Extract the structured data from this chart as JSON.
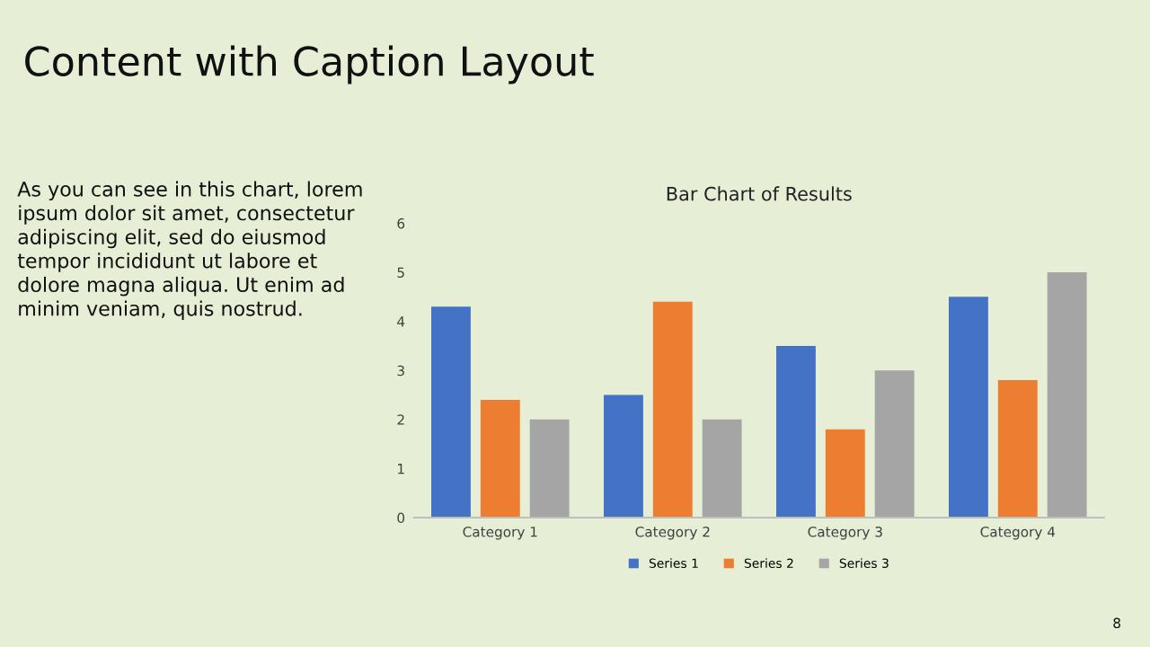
{
  "chart_data": {
    "type": "bar",
    "title": "Bar Chart of Results",
    "categories": [
      "Category 1",
      "Category 2",
      "Category 3",
      "Category 4"
    ],
    "series": [
      {
        "name": "Series 1",
        "color": "#4472c4",
        "values": [
          4.3,
          2.5,
          3.5,
          4.5
        ]
      },
      {
        "name": "Series 2",
        "color": "#ed7d31",
        "values": [
          2.4,
          4.4,
          1.8,
          2.8
        ]
      },
      {
        "name": "Series 3",
        "color": "#a5a5a5",
        "values": [
          2,
          2,
          3,
          5
        ]
      }
    ],
    "ylim": [
      0,
      6
    ],
    "yticks": [
      0,
      1,
      2,
      3,
      4,
      5,
      6
    ],
    "grid": false,
    "legend": "bottom",
    "annotations": [
      "Content with Caption Layout",
      "As you can see in this chart, lorem\nipsum dolor sit amet, consectetur\nadipiscing elit, sed do eiusmod\ntempor incididunt ut labore et\ndolore magna aliqua. Ut enim ad\nminim veniam, quis nostrud.",
      "8"
    ]
  }
}
